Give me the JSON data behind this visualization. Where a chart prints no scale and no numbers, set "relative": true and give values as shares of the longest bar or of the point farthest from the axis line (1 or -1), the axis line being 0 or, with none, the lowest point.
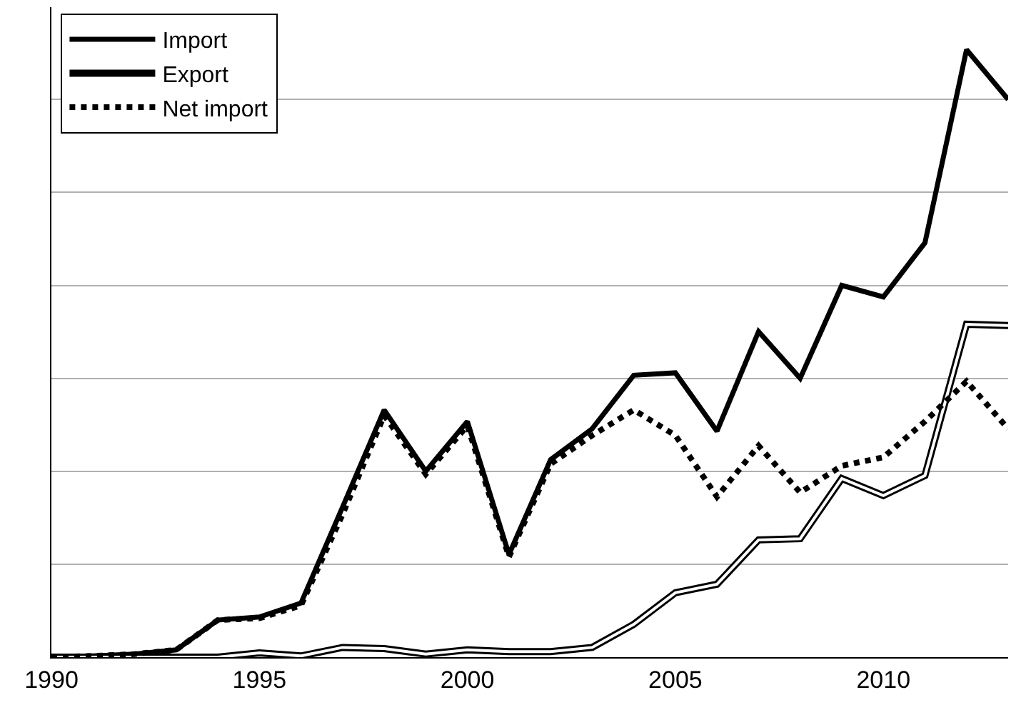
{
  "chart_data": {
    "type": "line",
    "relative": true,
    "x": [
      1990,
      1991,
      1992,
      1993,
      1994,
      1995,
      1996,
      1997,
      1998,
      1999,
      2000,
      2001,
      2002,
      2003,
      2004,
      2005,
      2006,
      2007,
      2008,
      2009,
      2010,
      2011,
      2012,
      2013
    ],
    "xlim": [
      1990,
      2013
    ],
    "xticks": [
      1990,
      1995,
      2000,
      2005,
      2010
    ],
    "grid": "y",
    "legend": "top left",
    "marker": "none",
    "series": [
      {
        "name": "Import",
        "color": "#000000",
        "line_style": "solid",
        "values": [
          0,
          0.002,
          0.005,
          0.012,
          0.061,
          0.066,
          0.089,
          0.247,
          0.407,
          0.306,
          0.388,
          0.169,
          0.325,
          0.376,
          0.464,
          0.468,
          0.372,
          0.536,
          0.459,
          0.612,
          0.593,
          0.682,
          1,
          0.918
        ]
      },
      {
        "name": "Export",
        "color": "#000000",
        "line_style": "solid",
        "values": [
          0,
          0,
          0,
          0,
          0,
          0.007,
          0.002,
          0.016,
          0.014,
          0.005,
          0.012,
          0.009,
          0.009,
          0.016,
          0.054,
          0.106,
          0.12,
          0.193,
          0.195,
          0.294,
          0.266,
          0.299,
          0.548,
          0.546
        ]
      },
      {
        "name": "Net import",
        "color": "#000000",
        "line_style": "dotted",
        "values": [
          0,
          0.002,
          0.005,
          0.012,
          0.061,
          0.064,
          0.085,
          0.235,
          0.398,
          0.301,
          0.381,
          0.165,
          0.318,
          0.365,
          0.407,
          0.365,
          0.264,
          0.348,
          0.271,
          0.315,
          0.329,
          0.388,
          0.454,
          0.376
        ]
      }
    ]
  }
}
